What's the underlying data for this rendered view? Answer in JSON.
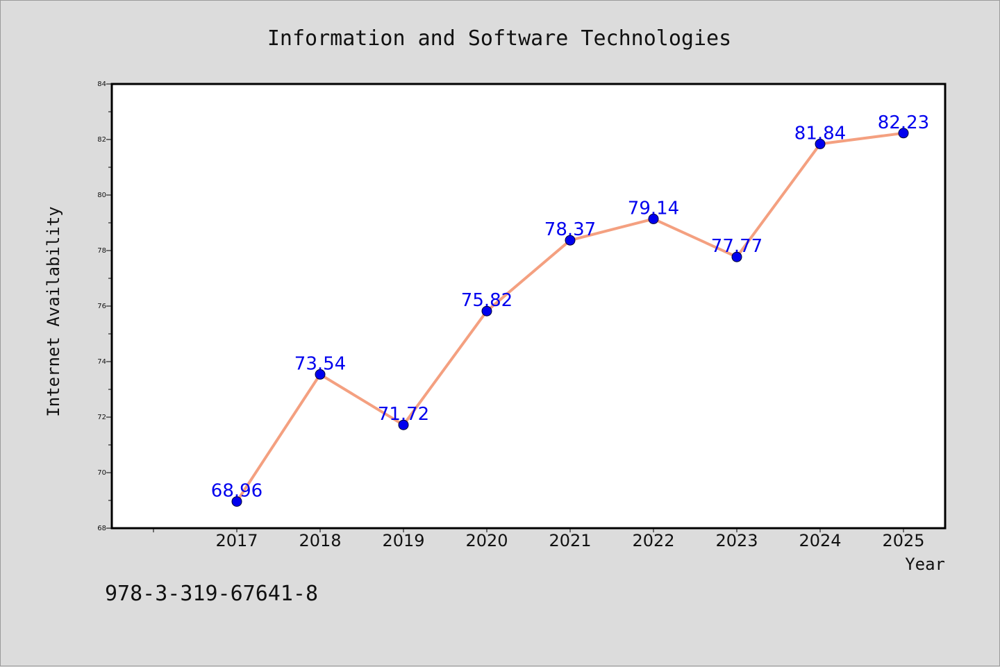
{
  "figure": {
    "footer_text": "978-3-319-67641-8",
    "background_color": "#dcdcdc"
  },
  "chart_data": {
    "type": "line",
    "title": "Information and Software Technologies",
    "xlabel": "Year",
    "ylabel": "Internet Availability",
    "categories": [
      "2017",
      "2018",
      "2019",
      "2020",
      "2021",
      "2022",
      "2023",
      "2024",
      "2025"
    ],
    "series": [
      {
        "values": [
          68.96,
          73.54,
          71.72,
          75.82,
          78.37,
          79.14,
          77.77,
          81.84,
          82.23
        ],
        "line_color": "#f4a080",
        "marker_color": "#0000ee"
      }
    ],
    "data_labels": [
      "68.96",
      "73.54",
      "71.72",
      "75.82",
      "78.37",
      "79.14",
      "77.77",
      "81.84",
      "82.23"
    ],
    "data_label_color": "#0000ee",
    "ylim": [
      68,
      84
    ],
    "yticks": [
      "68",
      "70",
      "72",
      "74",
      "76",
      "78",
      "80",
      "82",
      "84"
    ],
    "grid": false,
    "legend": "none"
  }
}
